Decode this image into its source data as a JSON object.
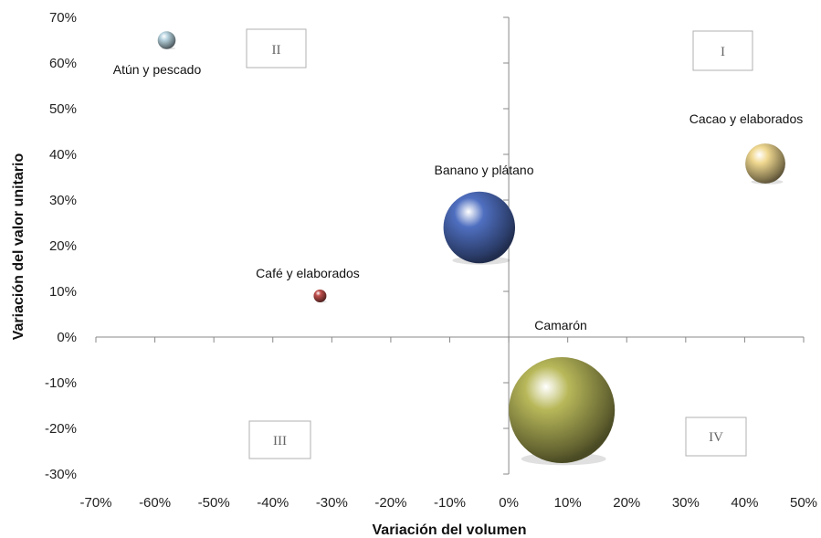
{
  "chart_data": {
    "type": "bubble",
    "title": "",
    "xlabel": "Variación del volumen",
    "ylabel": "Variación del valor unitario",
    "xlim": [
      -0.7,
      0.5
    ],
    "ylim": [
      -0.3,
      0.7
    ],
    "x_ticks": [
      "-70%",
      "-60%",
      "-50%",
      "-40%",
      "-30%",
      "-20%",
      "-10%",
      "0%",
      "10%",
      "20%",
      "30%",
      "40%",
      "50%"
    ],
    "y_ticks": [
      "70%",
      "60%",
      "50%",
      "40%",
      "30%",
      "20%",
      "10%",
      "0%",
      "-10%",
      "-20%",
      "-30%"
    ],
    "x_tick_values": [
      -0.7,
      -0.6,
      -0.5,
      -0.4,
      -0.3,
      -0.2,
      -0.1,
      0.0,
      0.1,
      0.2,
      0.3,
      0.4,
      0.5
    ],
    "y_tick_values": [
      0.7,
      0.6,
      0.5,
      0.4,
      0.3,
      0.2,
      0.1,
      0.0,
      -0.1,
      -0.2,
      -0.3
    ],
    "grid": false,
    "series": [
      {
        "name": "Atún y pescado",
        "x": -0.58,
        "y": 0.65,
        "size": 1.0,
        "color": "#b8d4e0"
      },
      {
        "name": "Café y elaborados",
        "x": -0.32,
        "y": 0.09,
        "size": 0.4,
        "color": "#c0504d"
      },
      {
        "name": "Banano y plátano",
        "x": -0.05,
        "y": 0.24,
        "size": 16.0,
        "color": "#4f6fc0"
      },
      {
        "name": "Cacao y elaborados",
        "x": 0.435,
        "y": 0.38,
        "size": 5.0,
        "color": "#f0d890"
      },
      {
        "name": "Camarón",
        "x": 0.09,
        "y": -0.16,
        "size": 35.0,
        "color": "#b8b85a"
      }
    ],
    "quadrant_labels": [
      "I",
      "II",
      "III",
      "IV"
    ]
  }
}
